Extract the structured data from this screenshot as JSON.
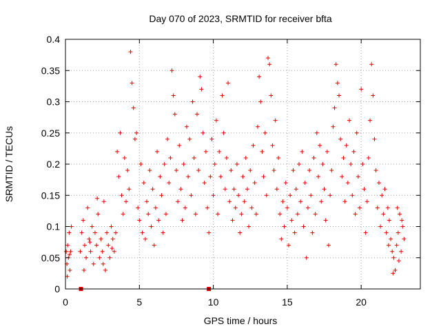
{
  "chart_data": {
    "type": "scatter",
    "title": "Day 070 of 2023, SRMTID for receiver bfta",
    "xlabel": "GPS time / hours",
    "ylabel": "SRMTID / TECUs",
    "xlim": [
      0,
      24
    ],
    "ylim": [
      0,
      0.4
    ],
    "xticks": [
      0,
      5,
      10,
      15,
      20
    ],
    "xtick_labels": [
      "0",
      "5",
      "10",
      "15",
      "20"
    ],
    "yticks": [
      0,
      0.05,
      0.1,
      0.15,
      0.2,
      0.25,
      0.3,
      0.35,
      0.4
    ],
    "ytick_labels": [
      "0",
      "0.05",
      "0.1",
      "0.15",
      "0.2",
      "0.25",
      "0.3",
      "0.35",
      "0.4"
    ],
    "grid": true,
    "series_color": "#e00000",
    "marker": "plus",
    "baseline_markers": [
      {
        "x": 1.05,
        "y": 0
      },
      {
        "x": 9.7,
        "y": 0
      }
    ],
    "series": [
      {
        "name": "SRMTID",
        "points": [
          [
            0.05,
            0.06
          ],
          [
            0.1,
            0.04
          ],
          [
            0.15,
            0.07
          ],
          [
            0.2,
            0.05
          ],
          [
            0.25,
            0.09
          ],
          [
            0.3,
            0.03
          ],
          [
            0.35,
            0.06
          ],
          [
            0.4,
            0.1
          ],
          [
            0.12,
            0.02
          ],
          [
            0.28,
            0.055
          ],
          [
            1.0,
            0.06
          ],
          [
            1.1,
            0.09
          ],
          [
            1.2,
            0.11
          ],
          [
            1.3,
            0.07
          ],
          [
            1.4,
            0.05
          ],
          [
            1.5,
            0.13
          ],
          [
            1.6,
            0.08
          ],
          [
            1.7,
            0.06
          ],
          [
            1.8,
            0.1
          ],
          [
            1.9,
            0.04
          ],
          [
            2.0,
            0.09
          ],
          [
            2.1,
            0.07
          ],
          [
            2.2,
            0.12
          ],
          [
            2.3,
            0.05
          ],
          [
            2.4,
            0.08
          ],
          [
            2.5,
            0.06
          ],
          [
            2.6,
            0.14
          ],
          [
            2.7,
            0.03
          ],
          [
            2.8,
            0.09
          ],
          [
            2.9,
            0.07
          ],
          [
            3.0,
            0.05
          ],
          [
            3.1,
            0.1
          ],
          [
            3.2,
            0.08
          ],
          [
            3.3,
            0.06
          ],
          [
            3.4,
            0.09
          ],
          [
            1.25,
            0.03
          ],
          [
            2.15,
            0.145
          ],
          [
            2.55,
            0.04
          ],
          [
            3.15,
            0.065
          ],
          [
            1.65,
            0.075
          ],
          [
            3.5,
            0.22
          ],
          [
            3.6,
            0.18
          ],
          [
            3.7,
            0.25
          ],
          [
            3.8,
            0.15
          ],
          [
            3.9,
            0.12
          ],
          [
            4.0,
            0.21
          ],
          [
            4.1,
            0.14
          ],
          [
            4.2,
            0.19
          ],
          [
            4.3,
            0.16
          ],
          [
            4.4,
            0.38
          ],
          [
            4.5,
            0.33
          ],
          [
            4.6,
            0.29
          ],
          [
            4.7,
            0.24
          ],
          [
            4.8,
            0.25
          ],
          [
            4.9,
            0.13
          ],
          [
            5.0,
            0.11
          ],
          [
            5.1,
            0.2
          ],
          [
            5.2,
            0.09
          ],
          [
            5.3,
            0.17
          ],
          [
            5.4,
            0.08
          ],
          [
            5.5,
            0.14
          ],
          [
            5.6,
            0.12
          ],
          [
            5.7,
            0.19
          ],
          [
            5.8,
            0.1
          ],
          [
            5.9,
            0.16
          ],
          [
            6.0,
            0.07
          ],
          [
            6.1,
            0.13
          ],
          [
            6.2,
            0.22
          ],
          [
            6.3,
            0.11
          ],
          [
            6.4,
            0.18
          ],
          [
            6.5,
            0.15
          ],
          [
            6.6,
            0.09
          ],
          [
            6.7,
            0.2
          ],
          [
            6.8,
            0.12
          ],
          [
            6.9,
            0.24
          ],
          [
            7.0,
            0.17
          ],
          [
            7.1,
            0.21
          ],
          [
            7.2,
            0.35
          ],
          [
            7.3,
            0.31
          ],
          [
            7.4,
            0.28
          ],
          [
            7.5,
            0.19
          ],
          [
            7.6,
            0.14
          ],
          [
            7.7,
            0.23
          ],
          [
            7.8,
            0.16
          ],
          [
            7.9,
            0.11
          ],
          [
            8.0,
            0.2
          ],
          [
            8.1,
            0.13
          ],
          [
            8.2,
            0.26
          ],
          [
            8.3,
            0.18
          ],
          [
            8.4,
            0.24
          ],
          [
            8.5,
            0.15
          ],
          [
            8.6,
            0.3
          ],
          [
            8.7,
            0.21
          ],
          [
            8.8,
            0.12
          ],
          [
            8.9,
            0.28
          ],
          [
            9.0,
            0.19
          ],
          [
            9.1,
            0.34
          ],
          [
            9.2,
            0.32
          ],
          [
            9.3,
            0.25
          ],
          [
            9.4,
            0.17
          ],
          [
            9.5,
            0.22
          ],
          [
            9.6,
            0.13
          ],
          [
            9.7,
            0.09
          ],
          [
            9.8,
            0.18
          ],
          [
            9.9,
            0.24
          ],
          [
            10.0,
            0.15
          ],
          [
            10.1,
            0.2
          ],
          [
            10.2,
            0.27
          ],
          [
            10.3,
            0.12
          ],
          [
            10.4,
            0.22
          ],
          [
            10.5,
            0.18
          ],
          [
            10.6,
            0.31
          ],
          [
            10.7,
            0.25
          ],
          [
            10.8,
            0.16
          ],
          [
            10.9,
            0.21
          ],
          [
            11.0,
            0.33
          ],
          [
            11.1,
            0.14
          ],
          [
            11.2,
            0.19
          ],
          [
            11.3,
            0.11
          ],
          [
            11.4,
            0.16
          ],
          [
            11.5,
            0.13
          ],
          [
            11.6,
            0.2
          ],
          [
            11.7,
            0.15
          ],
          [
            11.8,
            0.09
          ],
          [
            11.9,
            0.12
          ],
          [
            12.0,
            0.18
          ],
          [
            12.1,
            0.14
          ],
          [
            12.2,
            0.21
          ],
          [
            12.3,
            0.16
          ],
          [
            12.4,
            0.1
          ],
          [
            12.5,
            0.19
          ],
          [
            12.6,
            0.13
          ],
          [
            12.7,
            0.23
          ],
          [
            12.8,
            0.17
          ],
          [
            12.9,
            0.12
          ],
          [
            13.0,
            0.26
          ],
          [
            13.1,
            0.34
          ],
          [
            13.2,
            0.3
          ],
          [
            13.3,
            0.22
          ],
          [
            13.4,
            0.18
          ],
          [
            13.5,
            0.25
          ],
          [
            13.6,
            0.15
          ],
          [
            13.7,
            0.37
          ],
          [
            13.8,
            0.36
          ],
          [
            13.9,
            0.31
          ],
          [
            14.0,
            0.23
          ],
          [
            14.1,
            0.19
          ],
          [
            14.2,
            0.27
          ],
          [
            14.3,
            0.16
          ],
          [
            14.4,
            0.21
          ],
          [
            14.5,
            0.12
          ],
          [
            14.6,
            0.08
          ],
          [
            14.7,
            0.14
          ],
          [
            14.8,
            0.1
          ],
          [
            14.9,
            0.17
          ],
          [
            15.0,
            0.13
          ],
          [
            15.1,
            0.07
          ],
          [
            15.2,
            0.15
          ],
          [
            15.3,
            0.11
          ],
          [
            15.4,
            0.19
          ],
          [
            15.5,
            0.09
          ],
          [
            15.6,
            0.16
          ],
          [
            15.7,
            0.12
          ],
          [
            15.8,
            0.2
          ],
          [
            15.9,
            0.14
          ],
          [
            16.0,
            0.22
          ],
          [
            16.1,
            0.1
          ],
          [
            16.2,
            0.17
          ],
          [
            16.3,
            0.05
          ],
          [
            16.4,
            0.13
          ],
          [
            16.5,
            0.19
          ],
          [
            16.6,
            0.15
          ],
          [
            16.7,
            0.09
          ],
          [
            16.8,
            0.21
          ],
          [
            16.9,
            0.12
          ],
          [
            17.0,
            0.25
          ],
          [
            17.1,
            0.18
          ],
          [
            17.2,
            0.23
          ],
          [
            17.3,
            0.14
          ],
          [
            17.4,
            0.2
          ],
          [
            17.5,
            0.16
          ],
          [
            17.6,
            0.11
          ],
          [
            17.7,
            0.22
          ],
          [
            17.8,
            0.07
          ],
          [
            17.9,
            0.15
          ],
          [
            18.0,
            0.19
          ],
          [
            18.1,
            0.26
          ],
          [
            18.2,
            0.29
          ],
          [
            18.3,
            0.36
          ],
          [
            18.4,
            0.33
          ],
          [
            18.5,
            0.31
          ],
          [
            18.6,
            0.24
          ],
          [
            18.7,
            0.18
          ],
          [
            18.8,
            0.21
          ],
          [
            18.9,
            0.14
          ],
          [
            19.0,
            0.23
          ],
          [
            19.1,
            0.17
          ],
          [
            19.2,
            0.27
          ],
          [
            19.3,
            0.2
          ],
          [
            19.4,
            0.15
          ],
          [
            19.5,
            0.22
          ],
          [
            19.6,
            0.12
          ],
          [
            19.7,
            0.25
          ],
          [
            19.8,
            0.18
          ],
          [
            19.9,
            0.13
          ],
          [
            20.0,
            0.32
          ],
          [
            20.1,
            0.2
          ],
          [
            20.2,
            0.16
          ],
          [
            20.3,
            0.09
          ],
          [
            20.4,
            0.14
          ],
          [
            20.5,
            0.21
          ],
          [
            20.6,
            0.27
          ],
          [
            20.7,
            0.36
          ],
          [
            20.8,
            0.31
          ],
          [
            20.9,
            0.24
          ],
          [
            21.0,
            0.19
          ],
          [
            21.1,
            0.13
          ],
          [
            21.2,
            0.17
          ],
          [
            21.3,
            0.1
          ],
          [
            21.4,
            0.15
          ],
          [
            21.5,
            0.12
          ],
          [
            21.6,
            0.16
          ],
          [
            21.7,
            0.09
          ],
          [
            21.8,
            0.13
          ],
          [
            21.9,
            0.11
          ],
          [
            22.0,
            0.08
          ],
          [
            22.1,
            0.06
          ],
          [
            22.2,
            0.05
          ],
          [
            22.3,
            0.03
          ],
          [
            22.4,
            0.07
          ],
          [
            22.5,
            0.09
          ],
          [
            22.6,
            0.12
          ],
          [
            22.7,
            0.06
          ],
          [
            22.8,
            0.1
          ],
          [
            22.9,
            0.08
          ],
          [
            22.15,
            0.025
          ],
          [
            22.55,
            0.045
          ],
          [
            22.75,
            0.11
          ],
          [
            21.85,
            0.07
          ],
          [
            22.45,
            0.13
          ]
        ]
      }
    ]
  }
}
